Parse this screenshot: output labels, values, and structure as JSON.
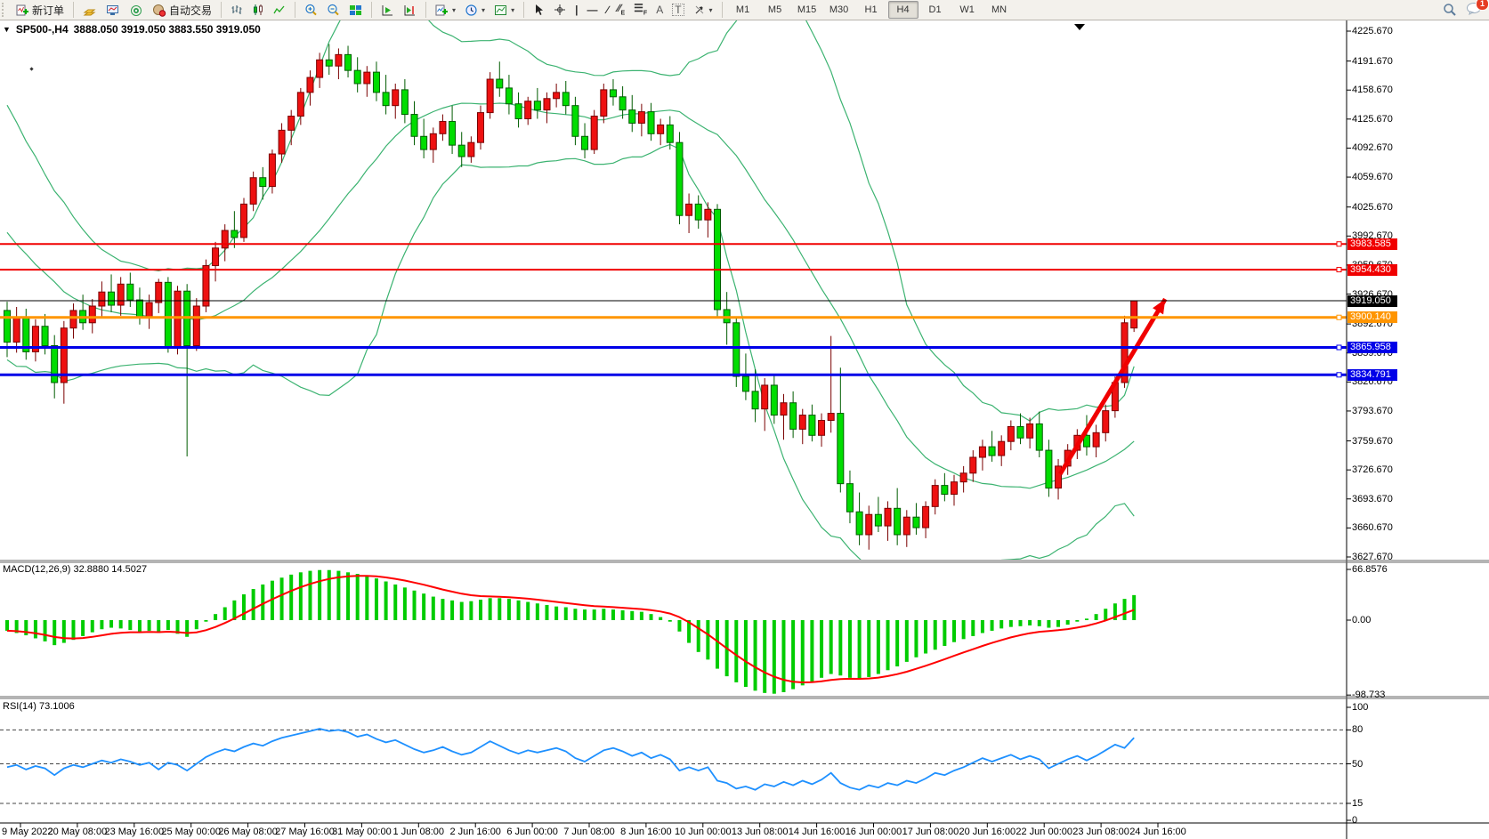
{
  "toolbar": {
    "new_order_label": "新订单",
    "autotrading_label": "自动交易",
    "timeframes": [
      "M1",
      "M5",
      "M15",
      "M30",
      "H1",
      "H4",
      "D1",
      "W1",
      "MN"
    ],
    "active_timeframe": "H4",
    "notification_badge": "1"
  },
  "chart": {
    "symbol_title": "SP500-,H4",
    "ohlc_readout": "3888.050 3919.050 3883.550 3919.050",
    "price_axis_ticks": [
      "4225.670",
      "4191.670",
      "4158.670",
      "4125.670",
      "4092.670",
      "4059.670",
      "4025.670",
      "3992.670",
      "3959.670",
      "3926.670",
      "3892.670",
      "3859.670",
      "3826.670",
      "3793.670",
      "3759.670",
      "3726.670",
      "3693.670",
      "3660.670",
      "3627.670"
    ],
    "horizontal_lines": [
      {
        "price": 3983.585,
        "label": "3983.585",
        "color": "#f00000",
        "thickness": 2,
        "anchor": true
      },
      {
        "price": 3954.43,
        "label": "3954.430",
        "color": "#f00000",
        "thickness": 2,
        "anchor": true
      },
      {
        "price": 3919.05,
        "label": "3919.050",
        "color": "#000000",
        "thickness": 1,
        "anchor": false
      },
      {
        "price": 3900.14,
        "label": "3900.140",
        "color": "#ff9500",
        "thickness": 3,
        "anchor": true
      },
      {
        "price": 3865.958,
        "label": "3865.958",
        "color": "#0000e8",
        "thickness": 3,
        "anchor": true
      },
      {
        "price": 3834.791,
        "label": "3834.791",
        "color": "#0000e8",
        "thickness": 3,
        "anchor": true
      }
    ],
    "time_axis_labels": [
      "9 May 2022",
      "20 May 08:00",
      "23 May 16:00",
      "25 May 00:00",
      "26 May 08:00",
      "27 May 16:00",
      "31 May 00:00",
      "1 Jun 08:00",
      "2 Jun 16:00",
      "6 Jun 00:00",
      "7 Jun 08:00",
      "8 Jun 16:00",
      "10 Jun 00:00",
      "13 Jun 08:00",
      "14 Jun 16:00",
      "16 Jun 00:00",
      "17 Jun 08:00",
      "20 Jun 16:00",
      "22 Jun 00:00",
      "23 Jun 08:00",
      "24 Jun 16:00"
    ],
    "colors": {
      "bull_fill": "#ee1111",
      "bull_stroke": "#7a0000",
      "bear_fill": "#00dd00",
      "bear_stroke": "#005c00",
      "bollinger": "#3CB371",
      "macd_histogram": "#00cc00",
      "macd_signal": "#ff0000",
      "rsi_line": "#1E90FF",
      "trend_arrow": "#f00000"
    }
  },
  "chart_data": {
    "type": "candlestick",
    "title": "SP500-,H4",
    "symbol": "SP500-",
    "timeframe": "H4",
    "last_bar": {
      "open": "3888.050",
      "high": "3919.050",
      "low": "3883.550",
      "close": "3919.050"
    },
    "y_axis_range": [
      3627.67,
      4225.67
    ],
    "candles_ohlc": [
      [
        3908,
        3918,
        3855,
        3872
      ],
      [
        3872,
        3912,
        3860,
        3900
      ],
      [
        3900,
        3910,
        3852,
        3861
      ],
      [
        3861,
        3898,
        3850,
        3890
      ],
      [
        3890,
        3904,
        3858,
        3868
      ],
      [
        3868,
        3880,
        3808,
        3826
      ],
      [
        3826,
        3896,
        3802,
        3888
      ],
      [
        3888,
        3916,
        3876,
        3908
      ],
      [
        3908,
        3926,
        3886,
        3894
      ],
      [
        3894,
        3921,
        3882,
        3913
      ],
      [
        3913,
        3941,
        3901,
        3929
      ],
      [
        3929,
        3949,
        3906,
        3914
      ],
      [
        3914,
        3946,
        3902,
        3938
      ],
      [
        3938,
        3951,
        3912,
        3920
      ],
      [
        3920,
        3934,
        3892,
        3901
      ],
      [
        3901,
        3926,
        3887,
        3917
      ],
      [
        3917,
        3944,
        3905,
        3940
      ],
      [
        3940,
        3946,
        3860,
        3866
      ],
      [
        3866,
        3936,
        3858,
        3930
      ],
      [
        3930,
        3938,
        3742,
        3868
      ],
      [
        3868,
        3922,
        3862,
        3913
      ],
      [
        3913,
        3966,
        3906,
        3959
      ],
      [
        3959,
        3986,
        3941,
        3979
      ],
      [
        3979,
        4006,
        3964,
        3999
      ],
      [
        3999,
        4021,
        3979,
        3991
      ],
      [
        3991,
        4036,
        3986,
        4029
      ],
      [
        4029,
        4066,
        4021,
        4059
      ],
      [
        4059,
        4071,
        4034,
        4049
      ],
      [
        4049,
        4091,
        4041,
        4086
      ],
      [
        4086,
        4121,
        4076,
        4113
      ],
      [
        4113,
        4136,
        4096,
        4129
      ],
      [
        4129,
        4161,
        4119,
        4156
      ],
      [
        4156,
        4181,
        4141,
        4173
      ],
      [
        4173,
        4201,
        4161,
        4193
      ],
      [
        4193,
        4211,
        4176,
        4186
      ],
      [
        4186,
        4206,
        4171,
        4199
      ],
      [
        4199,
        4209,
        4173,
        4181
      ],
      [
        4181,
        4196,
        4156,
        4166
      ],
      [
        4166,
        4186,
        4151,
        4179
      ],
      [
        4179,
        4191,
        4146,
        4156
      ],
      [
        4156,
        4176,
        4131,
        4141
      ],
      [
        4141,
        4166,
        4126,
        4159
      ],
      [
        4159,
        4171,
        4121,
        4131
      ],
      [
        4131,
        4146,
        4096,
        4106
      ],
      [
        4106,
        4126,
        4081,
        4091
      ],
      [
        4091,
        4116,
        4076,
        4109
      ],
      [
        4109,
        4131,
        4101,
        4123
      ],
      [
        4123,
        4141,
        4086,
        4096
      ],
      [
        4096,
        4111,
        4071,
        4083
      ],
      [
        4083,
        4106,
        4076,
        4099
      ],
      [
        4099,
        4141,
        4091,
        4133
      ],
      [
        4133,
        4179,
        4126,
        4171
      ],
      [
        4171,
        4191,
        4151,
        4161
      ],
      [
        4161,
        4176,
        4131,
        4143
      ],
      [
        4143,
        4156,
        4116,
        4126
      ],
      [
        4126,
        4151,
        4119,
        4146
      ],
      [
        4146,
        4161,
        4126,
        4136
      ],
      [
        4136,
        4156,
        4121,
        4149
      ],
      [
        4149,
        4166,
        4139,
        4156
      ],
      [
        4156,
        4169,
        4131,
        4141
      ],
      [
        4141,
        4151,
        4096,
        4106
      ],
      [
        4106,
        4121,
        4081,
        4091
      ],
      [
        4091,
        4136,
        4086,
        4129
      ],
      [
        4129,
        4166,
        4121,
        4159
      ],
      [
        4159,
        4171,
        4141,
        4151
      ],
      [
        4151,
        4163,
        4126,
        4136
      ],
      [
        4136,
        4153,
        4111,
        4121
      ],
      [
        4121,
        4143,
        4106,
        4134
      ],
      [
        4134,
        4144,
        4101,
        4109
      ],
      [
        4109,
        4126,
        4096,
        4119
      ],
      [
        4119,
        4129,
        4091,
        4099
      ],
      [
        4099,
        4111,
        4006,
        4016
      ],
      [
        4016,
        4041,
        3996,
        4029
      ],
      [
        4029,
        4039,
        4001,
        4011
      ],
      [
        4011,
        4031,
        3991,
        4023
      ],
      [
        4023,
        4029,
        3901,
        3909
      ],
      [
        3909,
        3929,
        3869,
        3894
      ],
      [
        3894,
        3901,
        3821,
        3833
      ],
      [
        3833,
        3859,
        3806,
        3816
      ],
      [
        3816,
        3841,
        3781,
        3796
      ],
      [
        3796,
        3831,
        3771,
        3823
      ],
      [
        3823,
        3836,
        3779,
        3789
      ],
      [
        3789,
        3813,
        3761,
        3803
      ],
      [
        3803,
        3816,
        3763,
        3773
      ],
      [
        3773,
        3796,
        3756,
        3789
      ],
      [
        3789,
        3801,
        3759,
        3766
      ],
      [
        3766,
        3791,
        3753,
        3783
      ],
      [
        3783,
        3879,
        3769,
        3791
      ],
      [
        3791,
        3843,
        3701,
        3711
      ],
      [
        3711,
        3726,
        3666,
        3679
      ],
      [
        3679,
        3701,
        3641,
        3653
      ],
      [
        3653,
        3686,
        3636,
        3676
      ],
      [
        3676,
        3696,
        3656,
        3663
      ],
      [
        3663,
        3691,
        3646,
        3683
      ],
      [
        3683,
        3706,
        3641,
        3653
      ],
      [
        3653,
        3681,
        3639,
        3673
      ],
      [
        3673,
        3689,
        3653,
        3661
      ],
      [
        3661,
        3691,
        3649,
        3685
      ],
      [
        3685,
        3716,
        3676,
        3709
      ],
      [
        3709,
        3723,
        3691,
        3699
      ],
      [
        3699,
        3721,
        3686,
        3713
      ],
      [
        3713,
        3731,
        3701,
        3723
      ],
      [
        3723,
        3749,
        3713,
        3741
      ],
      [
        3741,
        3761,
        3726,
        3753
      ],
      [
        3753,
        3771,
        3736,
        3743
      ],
      [
        3743,
        3766,
        3731,
        3759
      ],
      [
        3759,
        3783,
        3749,
        3776
      ],
      [
        3776,
        3791,
        3756,
        3763
      ],
      [
        3763,
        3786,
        3751,
        3779
      ],
      [
        3779,
        3793,
        3741,
        3749
      ],
      [
        3749,
        3761,
        3696,
        3706
      ],
      [
        3706,
        3739,
        3693,
        3731
      ],
      [
        3731,
        3756,
        3721,
        3749
      ],
      [
        3749,
        3773,
        3739,
        3766
      ],
      [
        3766,
        3789,
        3743,
        3753
      ],
      [
        3753,
        3778,
        3741,
        3769
      ],
      [
        3769,
        3801,
        3759,
        3794
      ],
      [
        3794,
        3833,
        3786,
        3826
      ],
      [
        3826,
        3902,
        3820,
        3894
      ],
      [
        3888.05,
        3919.05,
        3883.55,
        3919.05
      ]
    ],
    "prehistory_closes_for_bands": [
      4140,
      4120,
      4100,
      4085,
      4070,
      4050,
      4030,
      4010,
      3995,
      3980,
      3968,
      3958,
      3950,
      3942,
      3936,
      3930,
      3925,
      3920,
      3915,
      3910
    ],
    "indicators": {
      "bollinger": {
        "period": 20,
        "deviations": 2
      },
      "macd": {
        "label": "MACD(12,26,9)",
        "readout": "32.8880 14.5027",
        "axis_ticks": [
          "66.8576",
          "0.00",
          "-98.733"
        ],
        "axis_values": [
          66.8576,
          0,
          -98.733
        ],
        "histogram": [
          -14,
          -17,
          -20,
          -24,
          -28,
          -33,
          -30,
          -26,
          -21,
          -16,
          -12,
          -10,
          -11,
          -13,
          -16,
          -14,
          -17,
          -13,
          -18,
          -22,
          -12,
          -2,
          8,
          17,
          26,
          34,
          41,
          47,
          52,
          56,
          60,
          63,
          65,
          66,
          66,
          65,
          63,
          61,
          58,
          55,
          51,
          47,
          43,
          39,
          35,
          31,
          28,
          26,
          24,
          25,
          27,
          29,
          29,
          28,
          26,
          24,
          22,
          20,
          18,
          17,
          15,
          14,
          14,
          15,
          14,
          13,
          12,
          11,
          8,
          4,
          -2,
          -15,
          -30,
          -42,
          -52,
          -64,
          -74,
          -82,
          -88,
          -93,
          -96,
          -97,
          -95,
          -91,
          -86,
          -81,
          -76,
          -71,
          -73,
          -76,
          -78,
          -75,
          -71,
          -66,
          -61,
          -55,
          -49,
          -44,
          -39,
          -34,
          -29,
          -25,
          -21,
          -17,
          -14,
          -11,
          -9,
          -8,
          -7,
          -8,
          -10,
          -9,
          -6,
          -2,
          2,
          8,
          15,
          22,
          28,
          33
        ],
        "signal_period": 9
      },
      "rsi": {
        "label": "RSI(14)",
        "readout": "73.1006",
        "axis_ticks": [
          "100",
          "80",
          "50",
          "15",
          "0"
        ],
        "axis_values": [
          100,
          80,
          50,
          15,
          0
        ],
        "levels": [
          80,
          50,
          15
        ],
        "series": [
          47,
          49,
          45,
          48,
          46,
          40,
          46,
          49,
          47,
          50,
          53,
          51,
          54,
          52,
          49,
          51,
          45,
          51,
          49,
          44,
          50,
          56,
          60,
          63,
          61,
          65,
          68,
          66,
          70,
          73,
          75,
          77,
          79,
          81,
          79,
          80,
          78,
          74,
          76,
          72,
          69,
          71,
          67,
          63,
          60,
          62,
          65,
          61,
          58,
          60,
          65,
          70,
          66,
          62,
          59,
          62,
          60,
          62,
          64,
          61,
          55,
          52,
          57,
          62,
          64,
          61,
          57,
          60,
          55,
          58,
          54,
          44,
          47,
          44,
          47,
          35,
          33,
          28,
          30,
          27,
          32,
          30,
          34,
          31,
          35,
          32,
          36,
          42,
          33,
          29,
          27,
          31,
          29,
          33,
          31,
          35,
          33,
          37,
          42,
          40,
          44,
          47,
          51,
          55,
          52,
          55,
          58,
          54,
          57,
          54,
          46,
          50,
          54,
          57,
          53,
          57,
          62,
          67,
          64,
          73.1
        ]
      }
    },
    "trend_arrow": {
      "from_bar": 111.2,
      "from_price": 3722,
      "to_bar": 122.3,
      "to_price": 3921
    }
  }
}
